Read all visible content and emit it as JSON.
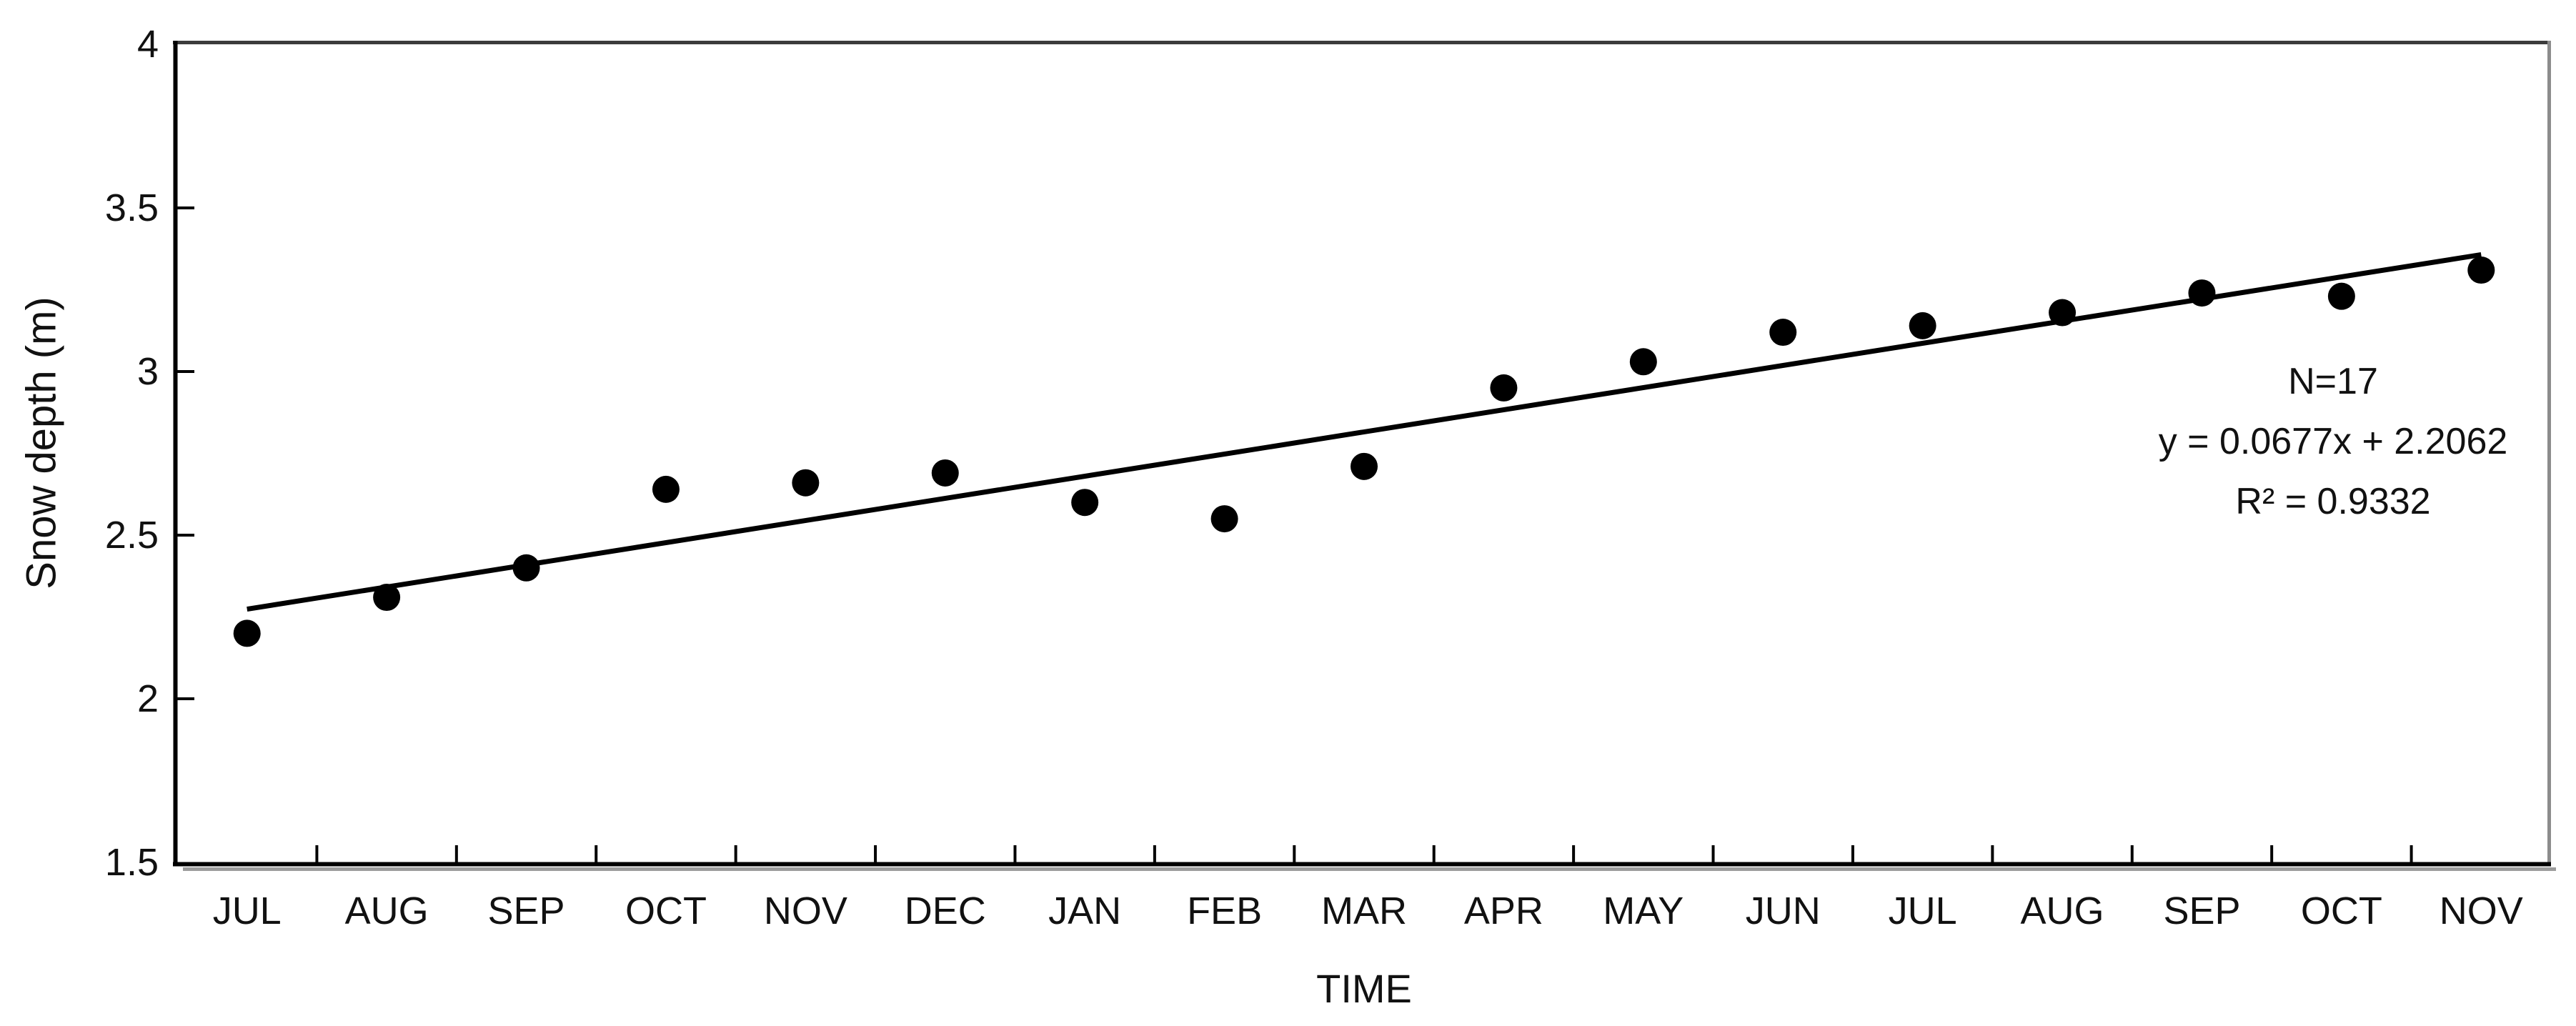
{
  "chart_data": {
    "type": "scatter",
    "title": "",
    "xlabel": "TIME",
    "ylabel": "Snow depth (m)",
    "categories": [
      "JUL",
      "AUG",
      "SEP",
      "OCT",
      "NOV",
      "DEC",
      "JAN",
      "FEB",
      "MAR",
      "APR",
      "MAY",
      "JUN",
      "JUL",
      "AUG",
      "SEP",
      "OCT",
      "NOV"
    ],
    "series": [
      {
        "name": "Snow depth",
        "values": [
          2.2,
          2.31,
          2.4,
          2.64,
          2.66,
          2.69,
          2.6,
          2.55,
          2.71,
          2.95,
          3.03,
          3.12,
          3.14,
          3.18,
          3.24,
          3.23,
          3.31
        ]
      }
    ],
    "trendline": {
      "slope": 0.0677,
      "intercept": 2.2062,
      "r_squared": 0.9332
    },
    "annotations": [
      "N=17",
      "y = 0.0677x + 2.2062",
      "R² = 0.9332"
    ],
    "ylim": [
      1.5,
      4
    ],
    "yticks": [
      4,
      3.5,
      3,
      2.5,
      2,
      1.5
    ],
    "grid": false,
    "legend": false,
    "point_color": "#000000",
    "trend_color": "#000000",
    "frame_colors": {
      "top": "#3c3c3c",
      "right": "#8c8c8c",
      "bottom": "#000000",
      "left": "#000000",
      "shadow": "#9c9c9c"
    }
  }
}
